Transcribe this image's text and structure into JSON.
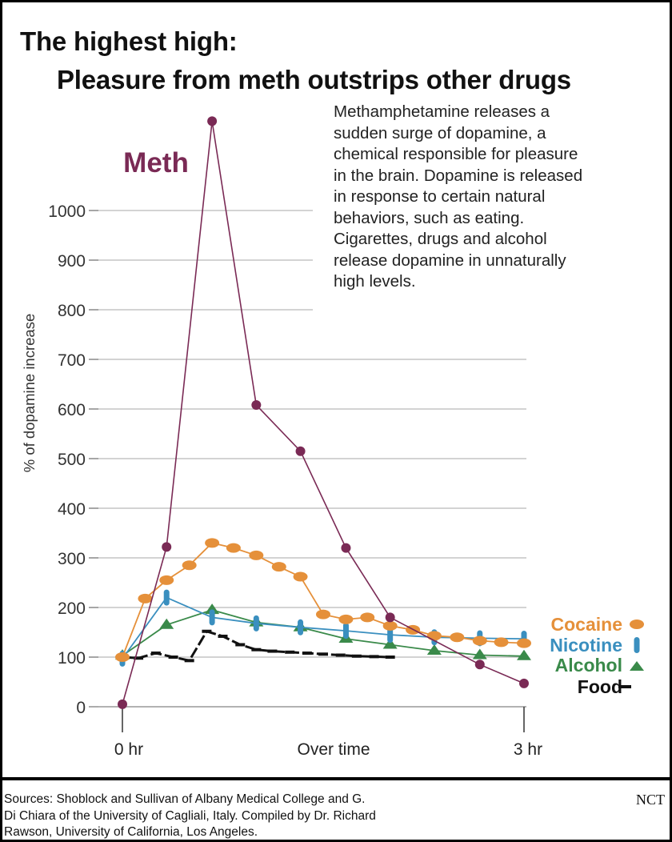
{
  "title_line1": "The highest high:",
  "title_line2": "Pleasure from meth outstrips other drugs",
  "description_lines": [
    "Methamphetamine releases a",
    "sudden surge of dopamine, a",
    "chemical responsible for pleasure",
    "in the brain. Dopamine is released",
    "in response to certain natural",
    "behaviors, such as eating.",
    "Cigarettes, drugs and alcohol",
    "release dopamine in unnaturally",
    "high levels."
  ],
  "sources_lines": [
    "Sources: Shoblock and Sullivan of Albany Medical College and G.",
    "Di Chiara of the University of Cagliali, Italy. Compiled by Dr. Richard",
    "Rawson, University of California, Los Angeles."
  ],
  "credit": "NCT",
  "chart_data": {
    "type": "line",
    "title": "The highest high: Pleasure from meth outstrips other drugs",
    "ylabel": "% of dopamine increase",
    "xlabel": "",
    "x_tick_labels": [
      "0 hr",
      "Over time",
      "3 hr"
    ],
    "x_range_hours": [
      0,
      3
    ],
    "ylim": [
      0,
      1000
    ],
    "y_ticks": [
      0,
      100,
      200,
      300,
      400,
      500,
      600,
      700,
      800,
      900,
      1000
    ],
    "grid": true,
    "series": [
      {
        "name": "Meth",
        "color": "#7a2a55",
        "marker": "circle",
        "x": [
          0,
          0.33,
          0.67,
          1.0,
          1.33,
          1.67,
          2.0,
          2.67,
          3.0
        ],
        "y": [
          5,
          322,
          1180,
          608,
          515,
          320,
          180,
          85,
          47
        ]
      },
      {
        "name": "Cocaine",
        "color": "#e5903a",
        "marker": "oval",
        "x": [
          0,
          0.17,
          0.33,
          0.5,
          0.67,
          0.83,
          1.0,
          1.17,
          1.33,
          1.5,
          1.67,
          1.83,
          2.0,
          2.17,
          2.33,
          2.5,
          2.67,
          2.83,
          3.0
        ],
        "y": [
          100,
          218,
          255,
          285,
          330,
          320,
          305,
          282,
          262,
          186,
          176,
          180,
          163,
          155,
          143,
          140,
          133,
          130,
          128
        ]
      },
      {
        "name": "Nicotine",
        "color": "#3a8fbf",
        "marker": "bar",
        "x": [
          0,
          0.33,
          0.67,
          1.0,
          1.33,
          1.67,
          2.0,
          2.33,
          2.67,
          3.0
        ],
        "y": [
          97,
          220,
          180,
          168,
          160,
          153,
          145,
          140,
          138,
          137
        ]
      },
      {
        "name": "Alcohol",
        "color": "#3a8a4a",
        "marker": "triangle",
        "x": [
          0,
          0.33,
          0.67,
          1.0,
          1.33,
          1.67,
          2.0,
          2.33,
          2.67,
          3.0
        ],
        "y": [
          103,
          165,
          195,
          170,
          160,
          137,
          125,
          113,
          104,
          102
        ]
      },
      {
        "name": "Food",
        "color": "#111111",
        "marker": "dash",
        "x": [
          0,
          0.12,
          0.25,
          0.38,
          0.5,
          0.63,
          0.75,
          0.88,
          1.0,
          1.12,
          1.25,
          1.38,
          1.5,
          1.63,
          1.75,
          1.88,
          2.0
        ],
        "y": [
          100,
          98,
          108,
          100,
          93,
          152,
          142,
          125,
          115,
          112,
          110,
          108,
          106,
          104,
          102,
          101,
          100
        ]
      }
    ]
  }
}
